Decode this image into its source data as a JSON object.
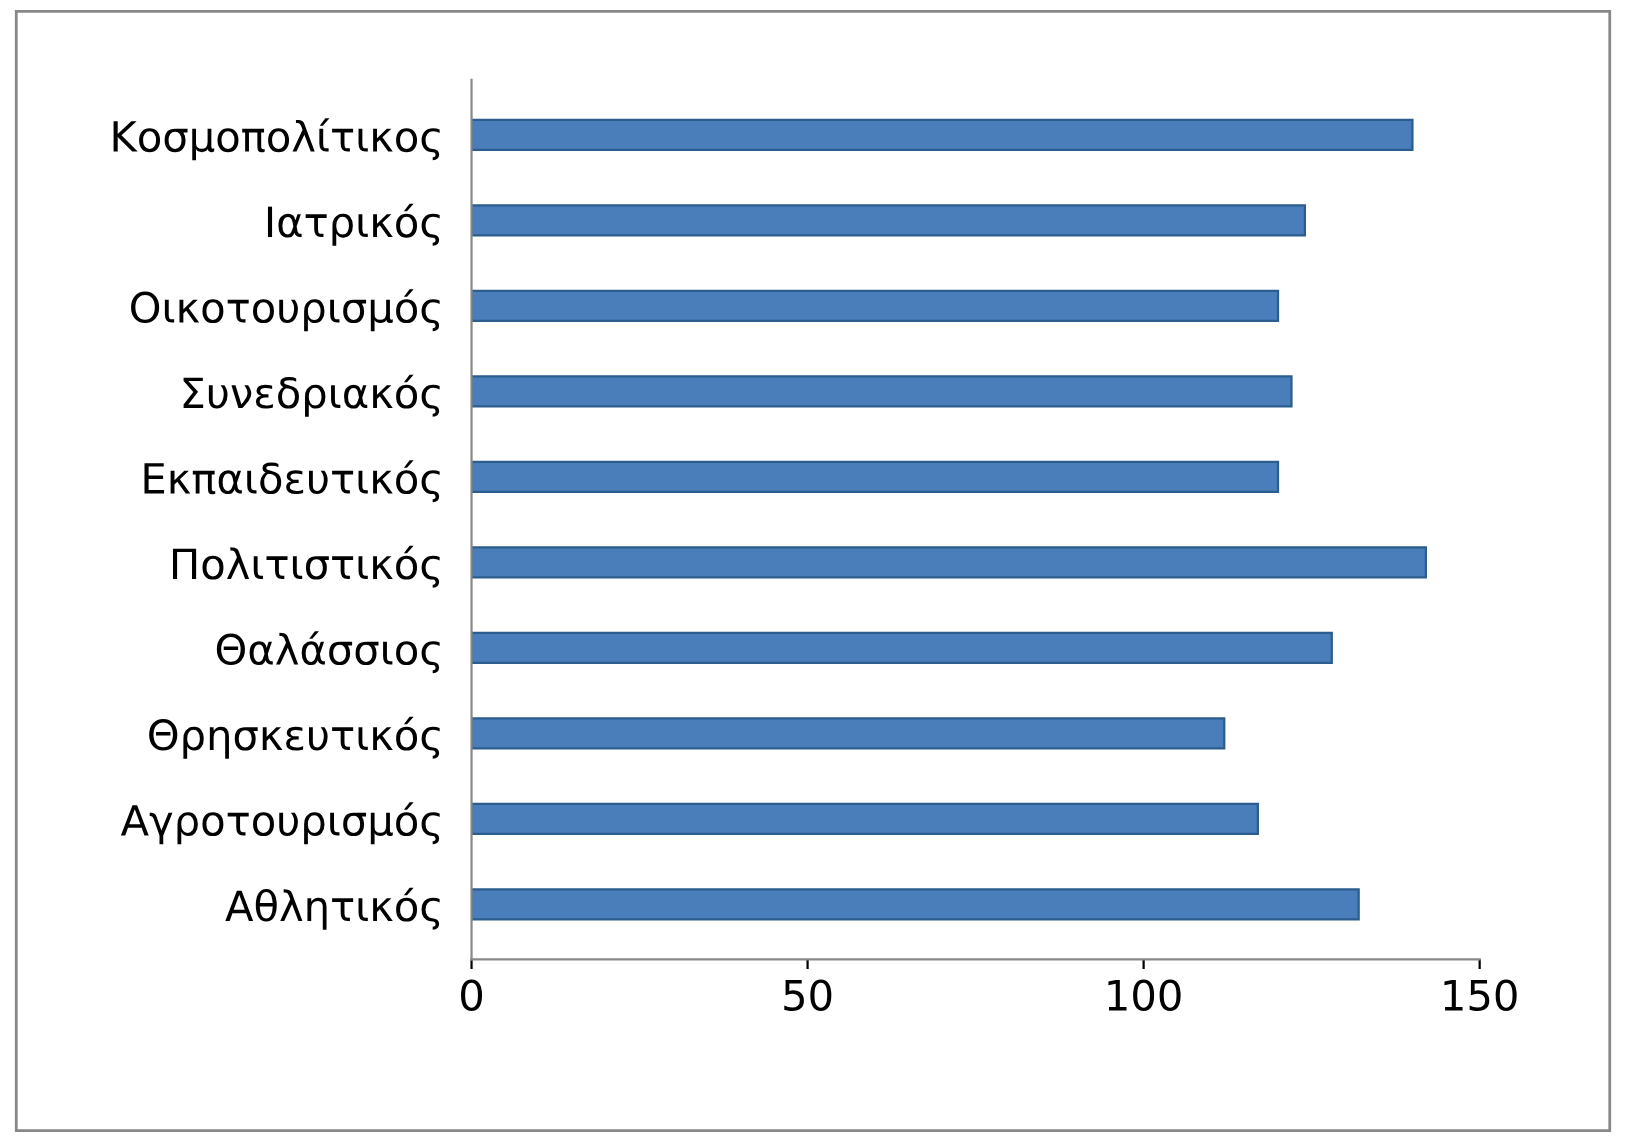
{
  "chart_data": {
    "type": "bar",
    "orientation": "horizontal",
    "categories": [
      "Κοσμοπολίτικος",
      "Ιατρικός",
      "Οικοτουρισμός",
      "Συνεδριακός",
      "Εκπαιδευτικός",
      "Πολιτιστικός",
      "Θαλάσσιος",
      "Θρησκευτικός",
      "Αγροτουρισμός",
      "Αθλητικός"
    ],
    "values": [
      140,
      124,
      120,
      122,
      120,
      142,
      128,
      112,
      117,
      132
    ],
    "color": "#4a7ebb",
    "xlim": [
      0,
      150
    ],
    "xticks": [
      0,
      50,
      100,
      150
    ],
    "grid": false,
    "legend": false
  }
}
